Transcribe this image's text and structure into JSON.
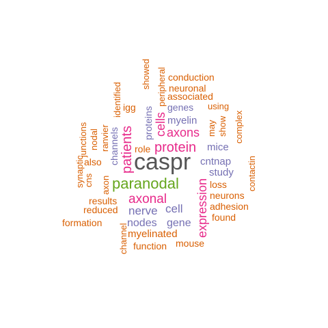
{
  "colors": {
    "orange": "#D95F02",
    "purple": "#7570B3",
    "magenta": "#E7298A",
    "green": "#66A61E",
    "gray": "#555555"
  },
  "words": [
    {
      "text": "caspr",
      "color": "gray"
    },
    {
      "text": "paranodal",
      "color": "green"
    },
    {
      "text": "patients",
      "color": "magenta"
    },
    {
      "text": "protein",
      "color": "magenta"
    },
    {
      "text": "expression",
      "color": "magenta"
    },
    {
      "text": "axonal",
      "color": "magenta"
    },
    {
      "text": "axons",
      "color": "magenta"
    },
    {
      "text": "cells",
      "color": "magenta"
    },
    {
      "text": "nerve",
      "color": "purple"
    },
    {
      "text": "cell",
      "color": "purple"
    },
    {
      "text": "nodes",
      "color": "purple"
    },
    {
      "text": "gene",
      "color": "purple"
    },
    {
      "text": "cntnap",
      "color": "purple"
    },
    {
      "text": "study",
      "color": "purple"
    },
    {
      "text": "mice",
      "color": "purple"
    },
    {
      "text": "myelin",
      "color": "purple"
    },
    {
      "text": "genes",
      "color": "purple"
    },
    {
      "text": "proteins",
      "color": "purple"
    },
    {
      "text": "channels",
      "color": "purple"
    },
    {
      "text": "myelinated",
      "color": "orange"
    },
    {
      "text": "function",
      "color": "orange"
    },
    {
      "text": "mouse",
      "color": "orange"
    },
    {
      "text": "channel",
      "color": "orange"
    },
    {
      "text": "formation",
      "color": "orange"
    },
    {
      "text": "reduced",
      "color": "orange"
    },
    {
      "text": "results",
      "color": "orange"
    },
    {
      "text": "axon",
      "color": "orange"
    },
    {
      "text": "also",
      "color": "orange"
    },
    {
      "text": "cns",
      "color": "orange"
    },
    {
      "text": "synaptic",
      "color": "orange"
    },
    {
      "text": "junctions",
      "color": "orange"
    },
    {
      "text": "nodal",
      "color": "orange"
    },
    {
      "text": "ranvier",
      "color": "orange"
    },
    {
      "text": "identified",
      "color": "orange"
    },
    {
      "text": "igg",
      "color": "orange"
    },
    {
      "text": "showed",
      "color": "orange"
    },
    {
      "text": "peripheral",
      "color": "orange"
    },
    {
      "text": "conduction",
      "color": "orange"
    },
    {
      "text": "neuronal",
      "color": "orange"
    },
    {
      "text": "associated",
      "color": "orange"
    },
    {
      "text": "using",
      "color": "orange"
    },
    {
      "text": "complex",
      "color": "orange"
    },
    {
      "text": "show",
      "color": "orange"
    },
    {
      "text": "may",
      "color": "orange"
    },
    {
      "text": "role",
      "color": "orange"
    },
    {
      "text": "contactin",
      "color": "orange"
    },
    {
      "text": "loss",
      "color": "orange"
    },
    {
      "text": "neurons",
      "color": "orange"
    },
    {
      "text": "adhesion",
      "color": "orange"
    },
    {
      "text": "found",
      "color": "orange"
    }
  ]
}
